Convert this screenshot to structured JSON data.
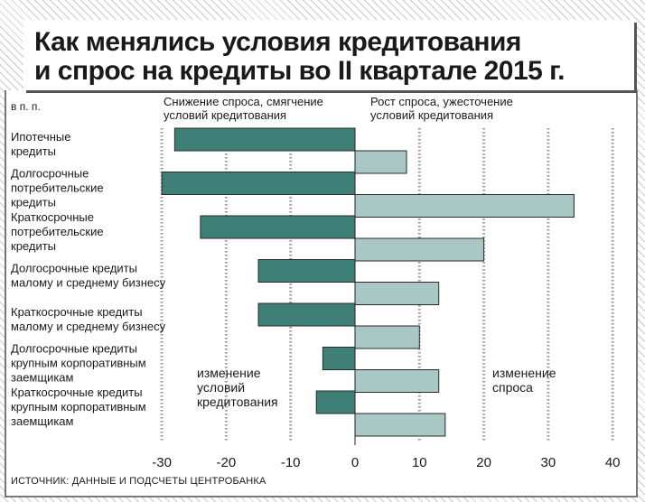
{
  "title": [
    "Как менялись условия кредитования",
    "и спрос на кредиты во II квартале 2015 г."
  ],
  "source": "ИСТОЧНИК: ДАННЫЕ И ПОДСЧЕТЫ ЦЕНТРОБАНКА",
  "colors": {
    "conditions": "#3e7f77",
    "demand": "#a9c8c5",
    "bar_outline": "#2a2a2a",
    "grid": "#9a9a9a",
    "text": "#1a1a1a"
  },
  "chart_data": {
    "type": "bar",
    "orientation": "horizontal",
    "unit_label": "в п. п.",
    "header_left": [
      "Снижение спроса, смягчение",
      "условий кредитования"
    ],
    "header_right": [
      "Рост спроса, ужесточение",
      "условий кредитования"
    ],
    "xlim": [
      -30,
      40
    ],
    "x_ticks": [
      -30,
      -20,
      -10,
      0,
      10,
      20,
      30,
      40
    ],
    "grid": true,
    "categories": [
      [
        "Ипотечные",
        "кредиты"
      ],
      [
        "Долгосрочные",
        "потребительские",
        "кредиты"
      ],
      [
        "Краткосрочные",
        "потребительские",
        "кредиты"
      ],
      [
        "Долгосрочные кредиты",
        "малому и среднему бизнесу"
      ],
      [
        "Краткосрочные кредиты",
        "малому и среднему бизнесу"
      ],
      [
        "Долгосрочные кредиты",
        "крупным корпоративным",
        "заемщикам"
      ],
      [
        "Краткосрочные кредиты",
        "крупным корпоративным",
        "заемщикам"
      ]
    ],
    "series": [
      {
        "name": [
          "изменение",
          "условий",
          "кредитования"
        ],
        "values": [
          -28,
          -30,
          -24,
          -15,
          -15,
          -5,
          -6
        ]
      },
      {
        "name": [
          "изменение",
          "спроса"
        ],
        "values": [
          8,
          34,
          20,
          13,
          10,
          13,
          14
        ]
      }
    ]
  }
}
